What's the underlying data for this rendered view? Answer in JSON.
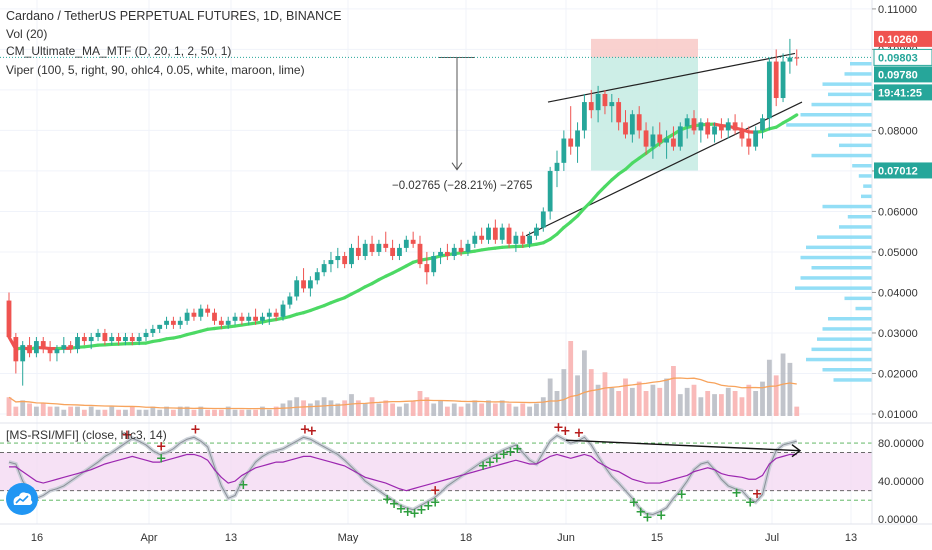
{
  "header": {
    "title": "Cardano / TetherUS PERPETUAL FUTURES, 1D, BINANCE",
    "indicators": [
      "Vol (20)",
      "CM_Ultimate_MA_MTF (D, 20, 1, 2, 50, 1)",
      "Viper (100, 5, right, 90, ohlc4, 0.05, white, maroon, lime)"
    ]
  },
  "rsi_panel": {
    "label": "[MS-RSI/MFI] (close, hlc3, 14)"
  },
  "measure_label": "−0.02765 (−28.21%) −2765",
  "colors": {
    "bull": "#26a69a",
    "bear": "#ef5350",
    "ma_up": "#4cd964",
    "ma_down": "#ef5350",
    "volume_up": "#b2b5be",
    "volume_down": "#f7a9a7",
    "volume_ma": "#f7a35c",
    "vp_bar": "#80d8f5",
    "rsi_line": "#9c27b0",
    "rsi_band": "#f3d7f1",
    "price_tag_current": "#26a69a",
    "price_tag_high": "#ef5350",
    "price_tag_support": "#26a69a"
  },
  "chart_data": {
    "type": "candlestick",
    "price_axis": {
      "ticks": [
        "0.11000",
        "0.10000",
        "0.09000",
        "0.08000",
        "0.07000",
        "0.06000",
        "0.05000",
        "0.04000",
        "0.03000",
        "0.02000",
        "0.01000"
      ],
      "ylim": [
        0.0095,
        0.1122
      ]
    },
    "time_axis": {
      "ticks": [
        "16",
        "Apr",
        "13",
        "May",
        "18",
        "Jun",
        "15",
        "Jul",
        "13"
      ]
    },
    "price_labels": [
      {
        "text": "0.10260",
        "kind": "high"
      },
      {
        "text": "0.09803",
        "kind": "last"
      },
      {
        "text": "0.09780",
        "kind": "last-close"
      },
      {
        "text": "19:41:25",
        "kind": "countdown"
      },
      {
        "text": "0.07012",
        "kind": "support"
      }
    ],
    "candles": [
      [
        0.038,
        0.04,
        0.029,
        0.029
      ],
      [
        0.029,
        0.03,
        0.02,
        0.023
      ],
      [
        0.023,
        0.028,
        0.017,
        0.027
      ],
      [
        0.027,
        0.029,
        0.024,
        0.025
      ],
      [
        0.025,
        0.029,
        0.024,
        0.028
      ],
      [
        0.028,
        0.029,
        0.025,
        0.026
      ],
      [
        0.026,
        0.028,
        0.023,
        0.025
      ],
      [
        0.025,
        0.027,
        0.023,
        0.026
      ],
      [
        0.026,
        0.029,
        0.025,
        0.027
      ],
      [
        0.027,
        0.028,
        0.025,
        0.026
      ],
      [
        0.026,
        0.03,
        0.025,
        0.029
      ],
      [
        0.029,
        0.03,
        0.027,
        0.028
      ],
      [
        0.028,
        0.03,
        0.026,
        0.029
      ],
      [
        0.029,
        0.031,
        0.028,
        0.03
      ],
      [
        0.03,
        0.031,
        0.027,
        0.028
      ],
      [
        0.028,
        0.03,
        0.027,
        0.029
      ],
      [
        0.029,
        0.03,
        0.027,
        0.028
      ],
      [
        0.028,
        0.03,
        0.027,
        0.029
      ],
      [
        0.029,
        0.03,
        0.027,
        0.028
      ],
      [
        0.028,
        0.03,
        0.027,
        0.029
      ],
      [
        0.029,
        0.031,
        0.028,
        0.03
      ],
      [
        0.03,
        0.032,
        0.029,
        0.031
      ],
      [
        0.031,
        0.032,
        0.03,
        0.032
      ],
      [
        0.032,
        0.034,
        0.031,
        0.033
      ],
      [
        0.033,
        0.034,
        0.031,
        0.032
      ],
      [
        0.032,
        0.034,
        0.031,
        0.033
      ],
      [
        0.033,
        0.036,
        0.032,
        0.035
      ],
      [
        0.035,
        0.036,
        0.033,
        0.034
      ],
      [
        0.034,
        0.037,
        0.033,
        0.036
      ],
      [
        0.036,
        0.037,
        0.034,
        0.035
      ],
      [
        0.035,
        0.036,
        0.032,
        0.033
      ],
      [
        0.033,
        0.034,
        0.031,
        0.032
      ],
      [
        0.032,
        0.034,
        0.031,
        0.033
      ],
      [
        0.033,
        0.035,
        0.032,
        0.034
      ],
      [
        0.034,
        0.035,
        0.032,
        0.033
      ],
      [
        0.033,
        0.035,
        0.032,
        0.034
      ],
      [
        0.034,
        0.036,
        0.032,
        0.033
      ],
      [
        0.033,
        0.035,
        0.032,
        0.034
      ],
      [
        0.034,
        0.036,
        0.032,
        0.035
      ],
      [
        0.035,
        0.036,
        0.033,
        0.034
      ],
      [
        0.034,
        0.038,
        0.033,
        0.037
      ],
      [
        0.037,
        0.04,
        0.036,
        0.039
      ],
      [
        0.039,
        0.044,
        0.038,
        0.043
      ],
      [
        0.043,
        0.046,
        0.04,
        0.041
      ],
      [
        0.041,
        0.044,
        0.039,
        0.043
      ],
      [
        0.043,
        0.046,
        0.042,
        0.045
      ],
      [
        0.045,
        0.048,
        0.044,
        0.047
      ],
      [
        0.047,
        0.05,
        0.045,
        0.048
      ],
      [
        0.048,
        0.051,
        0.046,
        0.049
      ],
      [
        0.049,
        0.05,
        0.046,
        0.047
      ],
      [
        0.047,
        0.052,
        0.046,
        0.051
      ],
      [
        0.051,
        0.054,
        0.048,
        0.049
      ],
      [
        0.049,
        0.053,
        0.048,
        0.052
      ],
      [
        0.052,
        0.054,
        0.049,
        0.05
      ],
      [
        0.05,
        0.053,
        0.049,
        0.052
      ],
      [
        0.052,
        0.055,
        0.05,
        0.051
      ],
      [
        0.051,
        0.053,
        0.048,
        0.049
      ],
      [
        0.049,
        0.052,
        0.048,
        0.051
      ],
      [
        0.051,
        0.054,
        0.05,
        0.053
      ],
      [
        0.053,
        0.055,
        0.051,
        0.052
      ],
      [
        0.052,
        0.054,
        0.046,
        0.047
      ],
      [
        0.047,
        0.05,
        0.042,
        0.045
      ],
      [
        0.045,
        0.05,
        0.044,
        0.049
      ],
      [
        0.049,
        0.051,
        0.047,
        0.05
      ],
      [
        0.05,
        0.052,
        0.048,
        0.049
      ],
      [
        0.049,
        0.052,
        0.048,
        0.051
      ],
      [
        0.051,
        0.053,
        0.049,
        0.05
      ],
      [
        0.05,
        0.053,
        0.049,
        0.052
      ],
      [
        0.052,
        0.055,
        0.051,
        0.054
      ],
      [
        0.054,
        0.056,
        0.052,
        0.053
      ],
      [
        0.053,
        0.057,
        0.052,
        0.056
      ],
      [
        0.056,
        0.058,
        0.052,
        0.053
      ],
      [
        0.053,
        0.057,
        0.052,
        0.056
      ],
      [
        0.056,
        0.057,
        0.051,
        0.052
      ],
      [
        0.052,
        0.055,
        0.05,
        0.054
      ],
      [
        0.054,
        0.055,
        0.051,
        0.052
      ],
      [
        0.052,
        0.055,
        0.051,
        0.054
      ],
      [
        0.054,
        0.057,
        0.053,
        0.056
      ],
      [
        0.056,
        0.061,
        0.055,
        0.06
      ],
      [
        0.06,
        0.071,
        0.058,
        0.07
      ],
      [
        0.07,
        0.075,
        0.066,
        0.072
      ],
      [
        0.072,
        0.08,
        0.07,
        0.078
      ],
      [
        0.078,
        0.086,
        0.074,
        0.076
      ],
      [
        0.076,
        0.082,
        0.072,
        0.08
      ],
      [
        0.08,
        0.089,
        0.078,
        0.087
      ],
      [
        0.087,
        0.09,
        0.083,
        0.085
      ],
      [
        0.085,
        0.091,
        0.082,
        0.089
      ],
      [
        0.089,
        0.09,
        0.084,
        0.086
      ],
      [
        0.086,
        0.089,
        0.082,
        0.087
      ],
      [
        0.087,
        0.088,
        0.08,
        0.082
      ],
      [
        0.082,
        0.085,
        0.078,
        0.079
      ],
      [
        0.079,
        0.085,
        0.077,
        0.084
      ],
      [
        0.084,
        0.086,
        0.078,
        0.08
      ],
      [
        0.08,
        0.082,
        0.074,
        0.076
      ],
      [
        0.076,
        0.081,
        0.073,
        0.079
      ],
      [
        0.079,
        0.082,
        0.076,
        0.077
      ],
      [
        0.077,
        0.08,
        0.073,
        0.078
      ],
      [
        0.078,
        0.081,
        0.075,
        0.076
      ],
      [
        0.076,
        0.082,
        0.075,
        0.081
      ],
      [
        0.081,
        0.084,
        0.078,
        0.083
      ],
      [
        0.083,
        0.085,
        0.079,
        0.08
      ],
      [
        0.08,
        0.083,
        0.077,
        0.082
      ],
      [
        0.082,
        0.083,
        0.078,
        0.079
      ],
      [
        0.079,
        0.082,
        0.077,
        0.081
      ],
      [
        0.081,
        0.083,
        0.078,
        0.08
      ],
      [
        0.08,
        0.083,
        0.078,
        0.082
      ],
      [
        0.082,
        0.084,
        0.079,
        0.08
      ],
      [
        0.08,
        0.082,
        0.076,
        0.078
      ],
      [
        0.078,
        0.081,
        0.074,
        0.076
      ],
      [
        0.076,
        0.081,
        0.075,
        0.08
      ],
      [
        0.08,
        0.084,
        0.078,
        0.083
      ],
      [
        0.083,
        0.098,
        0.08,
        0.097
      ],
      [
        0.097,
        0.1,
        0.086,
        0.088
      ],
      [
        0.088,
        0.099,
        0.087,
        0.097
      ],
      [
        0.097,
        0.1026,
        0.094,
        0.098
      ],
      [
        0.098,
        0.1,
        0.096,
        0.0978
      ]
    ],
    "volume": {
      "values": [
        0.6,
        0.3,
        0.5,
        0.4,
        0.3,
        0.4,
        0.3,
        0.3,
        0.2,
        0.3,
        0.3,
        0.2,
        0.3,
        0.2,
        0.2,
        0.3,
        0.2,
        0.2,
        0.3,
        0.2,
        0.2,
        0.3,
        0.2,
        0.3,
        0.2,
        0.3,
        0.3,
        0.2,
        0.3,
        0.2,
        0.2,
        0.2,
        0.3,
        0.2,
        0.2,
        0.2,
        0.2,
        0.3,
        0.2,
        0.3,
        0.4,
        0.5,
        0.6,
        0.5,
        0.4,
        0.5,
        0.6,
        0.5,
        0.4,
        0.5,
        0.7,
        0.5,
        0.4,
        0.6,
        0.4,
        0.5,
        0.4,
        0.3,
        0.4,
        0.5,
        0.8,
        0.6,
        0.4,
        0.5,
        0.3,
        0.4,
        0.3,
        0.4,
        0.5,
        0.4,
        0.5,
        0.4,
        0.5,
        0.4,
        0.3,
        0.4,
        0.3,
        0.4,
        0.6,
        1.2,
        0.8,
        1.5,
        2.4,
        1.3,
        2.1,
        1.5,
        1.0,
        1.4,
        0.9,
        0.8,
        1.2,
        0.9,
        1.1,
        0.8,
        1.0,
        0.9,
        1.2,
        1.6,
        0.7,
        0.9,
        1.0,
        0.6,
        0.8,
        0.7,
        0.7,
        0.9,
        0.8,
        0.6,
        1.0,
        0.8,
        1.1,
        1.8,
        1.3,
        2.0,
        1.7,
        0.3
      ],
      "ylim": [
        0,
        3.2
      ]
    },
    "volume_profile": [
      0.2,
      0.25,
      0.45,
      0.4,
      0.55,
      0.65,
      0.78,
      0.4,
      0.3,
      0.55,
      0.18,
      0.12,
      0.08,
      0.1,
      0.45,
      0.22,
      0.3,
      0.5,
      0.6,
      0.65,
      0.55,
      0.65,
      0.7,
      0.25,
      0.15,
      0.4,
      0.45,
      0.5,
      0.55,
      0.6,
      0.45,
      0.35
    ],
    "rsi": {
      "ylim": [
        -5,
        100
      ],
      "ticks": [
        "80.00000",
        "40.00000",
        "0.00000"
      ],
      "levels": [
        80,
        70,
        30,
        20
      ],
      "values": [
        60,
        58,
        40,
        30,
        22,
        25,
        30,
        32,
        35,
        40,
        45,
        50,
        55,
        60,
        66,
        70,
        75,
        80,
        85,
        82,
        78,
        72,
        68,
        70,
        74,
        80,
        84,
        86,
        82,
        76,
        55,
        35,
        22,
        25,
        40,
        50,
        60,
        66,
        70,
        72,
        74,
        78,
        82,
        86,
        84,
        80,
        76,
        72,
        68,
        62,
        55,
        48,
        40,
        35,
        30,
        25,
        20,
        15,
        12,
        10,
        14,
        18,
        22,
        28,
        35,
        40,
        45,
        50,
        55,
        60,
        64,
        68,
        72,
        75,
        78,
        70,
        62,
        58,
        70,
        82,
        88,
        84,
        80,
        82,
        86,
        78,
        66,
        55,
        45,
        38,
        30,
        22,
        12,
        6,
        5,
        8,
        12,
        22,
        30,
        40,
        52,
        58,
        60,
        52,
        42,
        35,
        32,
        30,
        22,
        18,
        26,
        55,
        72,
        78,
        80,
        82
      ],
      "main_values": [
        55,
        55,
        50,
        45,
        40,
        38,
        40,
        42,
        44,
        46,
        48,
        50,
        52,
        55,
        58,
        60,
        62,
        64,
        66,
        64,
        62,
        60,
        60,
        62,
        64,
        66,
        68,
        68,
        66,
        62,
        52,
        44,
        38,
        40,
        46,
        50,
        54,
        56,
        58,
        60,
        60,
        62,
        64,
        66,
        66,
        64,
        62,
        60,
        58,
        56,
        52,
        48,
        44,
        42,
        40,
        38,
        35,
        32,
        30,
        32,
        34,
        36,
        38,
        40,
        42,
        44,
        46,
        48,
        50,
        52,
        54,
        56,
        58,
        60,
        62,
        60,
        58,
        58,
        62,
        66,
        68,
        66,
        64,
        66,
        68,
        66,
        60,
        56,
        52,
        50,
        46,
        42,
        40,
        38,
        38,
        38,
        40,
        42,
        44,
        46,
        50,
        52,
        54,
        52,
        48,
        46,
        45,
        44,
        42,
        42,
        46,
        58,
        64,
        66,
        68,
        68
      ],
      "buy_markers": [
        22,
        34,
        55,
        56,
        57,
        58,
        59,
        60,
        61,
        62,
        69,
        70,
        71,
        72,
        73,
        74,
        91,
        92,
        93,
        95,
        98,
        106,
        108
      ],
      "sell_markers": [
        17,
        22,
        27,
        43,
        44,
        62,
        80,
        81,
        83,
        109
      ]
    }
  }
}
